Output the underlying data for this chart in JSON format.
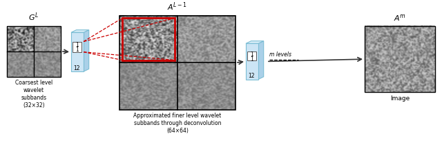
{
  "fig_width": 6.4,
  "fig_height": 2.17,
  "dpi": 100,
  "bg_color": "#ffffff",
  "title_AL1": "$A^{L-1}$",
  "title_GL": "$G^{L}$",
  "title_Am": "$A^{m}$",
  "label_coarsest": "Coarsest level\nwavelet\nsubbands\n(32×32)",
  "label_approx": "Approximated finer level wavelet\nsubbands through deconvolution\n(64×64)",
  "label_image": "Image",
  "label_mlevels": "m levels",
  "box_face_color": "#cce5f5",
  "box_edge_color": "#7bbdd4",
  "arrow_color": "#333333",
  "red_box_color": "#cc0000",
  "red_dashed_color": "#cc0000"
}
